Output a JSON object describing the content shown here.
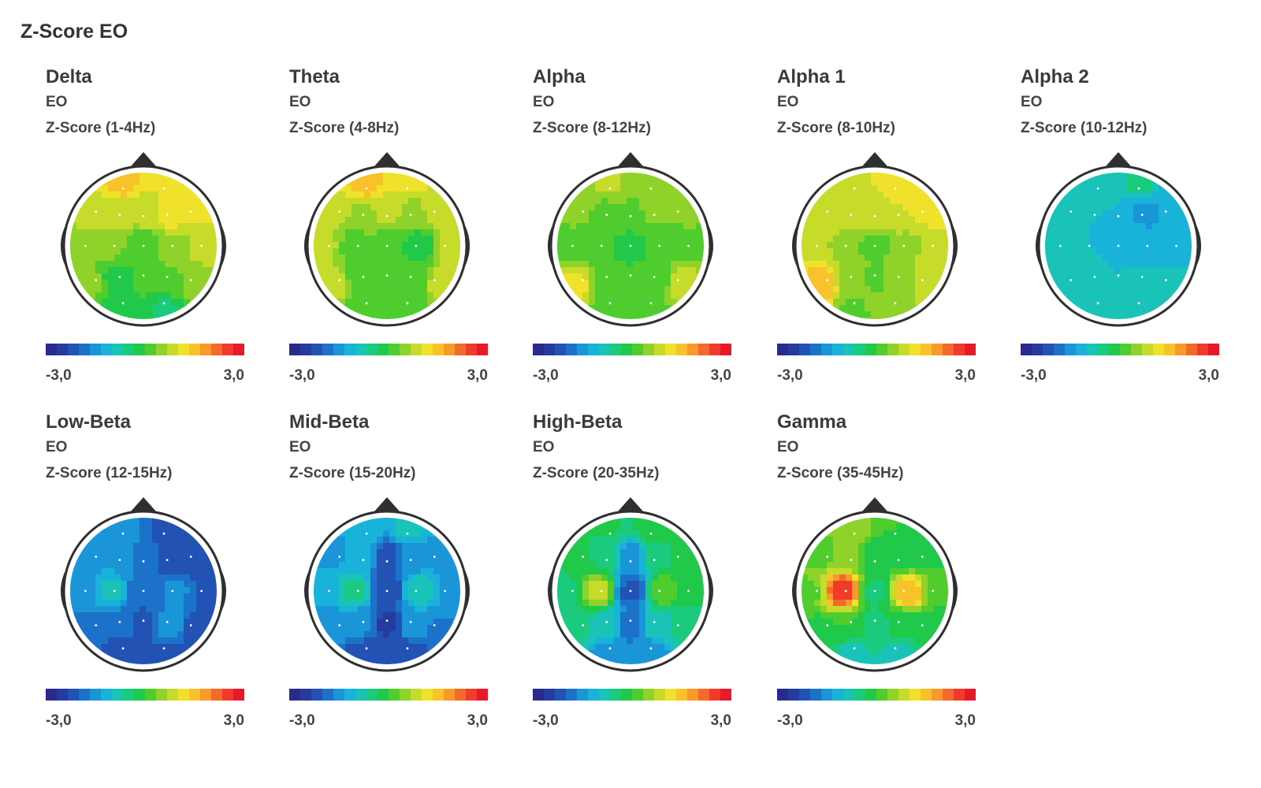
{
  "page_title": "Z-Score EO",
  "colorbar": {
    "min_label": "-3,0",
    "max_label": "3,0",
    "colors": [
      "#2a2a8c",
      "#253b9e",
      "#2152b4",
      "#1c72c8",
      "#1a95d8",
      "#19b2d8",
      "#1ac3b8",
      "#1acb7e",
      "#20c94a",
      "#4fcc2e",
      "#8ed22a",
      "#c6db2a",
      "#f0e22a",
      "#f8c22a",
      "#f89a2a",
      "#f46a2a",
      "#f03a2a",
      "#e81a2a"
    ]
  },
  "chart_data": [
    {
      "type": "heatmap",
      "title": "Delta",
      "condition": "EO",
      "metric": "Z-Score (1-4Hz)",
      "scale": [
        -3.0,
        3.0
      ],
      "electrode_values": {
        "Fp1": 1.5,
        "Fp2": 1.0,
        "F7": 0.8,
        "F3": 0.9,
        "Fz": 0.8,
        "F4": 1.2,
        "F8": 1.1,
        "T3": 0.6,
        "C3": 0.4,
        "Cz": 0.0,
        "C4": 0.6,
        "T4": 0.9,
        "T5": 0.4,
        "P3": -0.2,
        "Pz": 0.1,
        "P4": 0.3,
        "T6": 0.5,
        "O1": -0.3,
        "O2": -0.4
      }
    },
    {
      "type": "heatmap",
      "title": "Theta",
      "condition": "EO",
      "metric": "Z-Score (4-8Hz)",
      "scale": [
        -3.0,
        3.0
      ],
      "electrode_values": {
        "Fp1": 1.6,
        "Fp2": 1.1,
        "F7": 0.9,
        "F3": 0.6,
        "Fz": 0.7,
        "F4": 0.6,
        "F8": 1.0,
        "T3": 0.8,
        "C3": 0.2,
        "Cz": 0.2,
        "C4": -0.2,
        "T4": 0.9,
        "T5": 0.8,
        "P3": 0.1,
        "Pz": 0.2,
        "P4": 0.1,
        "T6": 0.8,
        "O1": 0.0,
        "O2": 0.0
      }
    },
    {
      "type": "heatmap",
      "title": "Alpha",
      "condition": "EO",
      "metric": "Z-Score (8-12Hz)",
      "scale": [
        -3.0,
        3.0
      ],
      "electrode_values": {
        "Fp1": 0.7,
        "Fp2": 0.6,
        "F7": 0.4,
        "F3": 0.3,
        "Fz": 0.3,
        "F4": 0.4,
        "F8": 0.4,
        "T3": 0.3,
        "C3": 0.0,
        "Cz": -0.1,
        "C4": 0.0,
        "T4": 0.3,
        "T5": 1.1,
        "P3": 0.1,
        "Pz": 0.0,
        "P4": 0.2,
        "T6": 0.9,
        "O1": 0.2,
        "O2": 0.3
      }
    },
    {
      "type": "heatmap",
      "title": "Alpha 1",
      "condition": "EO",
      "metric": "Z-Score (8-10Hz)",
      "scale": [
        -3.0,
        3.0
      ],
      "electrode_values": {
        "Fp1": 1.0,
        "Fp2": 1.1,
        "F7": 0.9,
        "F3": 0.9,
        "Fz": 0.9,
        "F4": 1.0,
        "F8": 1.1,
        "T3": 0.9,
        "C3": 0.6,
        "Cz": 0.2,
        "C4": 0.6,
        "T4": 1.0,
        "T5": 1.6,
        "P3": 0.6,
        "Pz": 0.3,
        "P4": 0.5,
        "T6": 1.0,
        "O1": 0.3,
        "O2": 0.4
      }
    },
    {
      "type": "heatmap",
      "title": "Alpha 2",
      "condition": "EO",
      "metric": "Z-Score (10-12Hz)",
      "scale": [
        -3.0,
        3.0
      ],
      "electrode_values": {
        "Fp1": -0.8,
        "Fp2": -0.6,
        "F7": -1.0,
        "F3": -1.0,
        "Fz": -1.0,
        "F4": -1.4,
        "F8": -1.3,
        "T3": -0.9,
        "C3": -1.0,
        "Cz": -1.1,
        "C4": -1.3,
        "T4": -1.2,
        "T5": -0.7,
        "P3": -0.9,
        "Pz": -1.0,
        "P4": -0.9,
        "T6": -0.8,
        "O1": -1.0,
        "O2": -1.0
      }
    },
    {
      "type": "heatmap",
      "title": "Low-Beta",
      "condition": "EO",
      "metric": "Z-Score (12-15Hz)",
      "scale": [
        -3.0,
        3.0
      ],
      "electrode_values": {
        "Fp1": -1.4,
        "Fp2": -2.1,
        "F7": -1.6,
        "F3": -1.4,
        "Fz": -1.8,
        "F4": -2.2,
        "F8": -2.3,
        "T3": -1.6,
        "C3": -0.9,
        "Cz": -2.0,
        "C4": -1.6,
        "T4": -2.2,
        "T5": -1.8,
        "P3": -1.9,
        "Pz": -2.1,
        "P4": -1.4,
        "T6": -2.2,
        "O1": -2.2,
        "O2": -2.2
      }
    },
    {
      "type": "heatmap",
      "title": "Mid-Beta",
      "condition": "EO",
      "metric": "Z-Score (15-20Hz)",
      "scale": [
        -3.0,
        3.0
      ],
      "electrode_values": {
        "Fp1": -1.2,
        "Fp2": -0.9,
        "F7": -1.4,
        "F3": -1.1,
        "Fz": -2.2,
        "F4": -1.5,
        "F8": -1.4,
        "T3": -1.3,
        "C3": -0.6,
        "Cz": -2.3,
        "C4": -0.8,
        "T4": -1.4,
        "T5": -1.6,
        "P3": -1.6,
        "Pz": -2.4,
        "P4": -1.5,
        "T6": -1.7,
        "O1": -2.3,
        "O2": -2.3
      }
    },
    {
      "type": "heatmap",
      "title": "High-Beta",
      "condition": "EO",
      "metric": "Z-Score (20-35Hz)",
      "scale": [
        -3.0,
        3.0
      ],
      "electrode_values": {
        "Fp1": -0.3,
        "Fp2": -0.2,
        "F7": -0.3,
        "F3": -0.4,
        "Fz": -1.6,
        "F4": -0.4,
        "F8": -0.3,
        "T3": -0.4,
        "C3": 0.8,
        "Cz": -2.1,
        "C4": 0.2,
        "T4": -0.3,
        "T5": -0.6,
        "P3": -0.8,
        "Pz": -1.9,
        "P4": -0.8,
        "T6": -0.6,
        "O1": -1.6,
        "O2": -1.6
      }
    },
    {
      "type": "heatmap",
      "title": "Gamma",
      "condition": "EO",
      "metric": "Z-Score (35-45Hz)",
      "scale": [
        -3.0,
        3.0
      ],
      "electrode_values": {
        "Fp1": 0.5,
        "Fp2": 0.0,
        "F7": 0.2,
        "F3": 0.5,
        "Fz": -0.3,
        "F4": -0.1,
        "F8": -0.1,
        "T3": 0.3,
        "C3": 2.5,
        "Cz": -0.4,
        "C4": 1.6,
        "T4": 0.0,
        "T5": -0.1,
        "P3": 0.0,
        "Pz": -0.5,
        "P4": -0.1,
        "T6": -0.3,
        "O1": -0.8,
        "O2": -0.8
      }
    }
  ]
}
